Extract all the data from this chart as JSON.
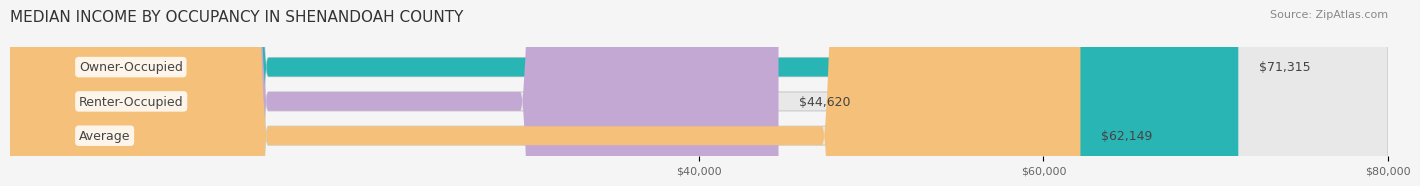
{
  "title": "MEDIAN INCOME BY OCCUPANCY IN SHENANDOAH COUNTY",
  "source": "Source: ZipAtlas.com",
  "categories": [
    "Owner-Occupied",
    "Renter-Occupied",
    "Average"
  ],
  "values": [
    71315,
    44620,
    62149
  ],
  "bar_colors": [
    "#2ab5b5",
    "#c4a8d4",
    "#f5c07a"
  ],
  "bar_edge_color": "#cccccc",
  "value_labels": [
    "$71,315",
    "$44,620",
    "$62,149"
  ],
  "xlim": [
    0,
    80000
  ],
  "xticks": [
    40000,
    60000,
    80000
  ],
  "xtick_labels": [
    "$40,000",
    "$60,000",
    "$80,000"
  ],
  "background_color": "#f5f5f5",
  "bar_bg_color": "#e8e8e8",
  "title_fontsize": 11,
  "source_fontsize": 8,
  "label_fontsize": 9,
  "tick_fontsize": 8,
  "bar_height": 0.55
}
